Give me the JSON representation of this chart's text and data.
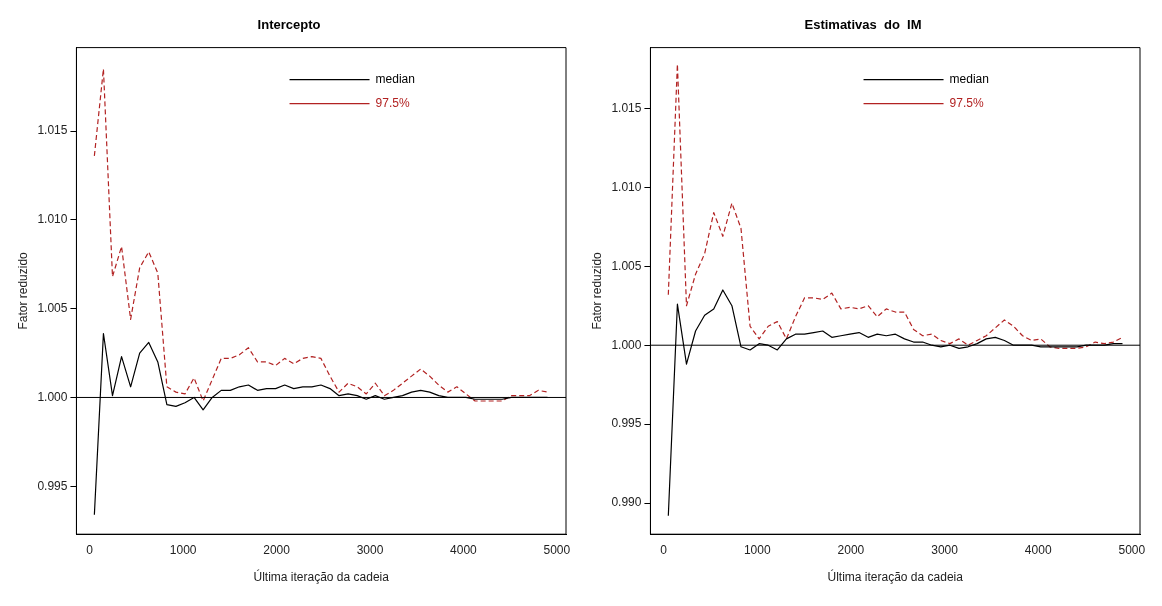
{
  "chart_data": [
    {
      "type": "line",
      "title": "Intercepto",
      "xlabel": "Última iteração da cadeia",
      "ylabel": "Fator reduzido",
      "x": [
        50,
        147,
        244,
        341,
        438,
        535,
        632,
        729,
        826,
        923,
        1020,
        1117,
        1214,
        1311,
        1408,
        1505,
        1602,
        1699,
        1796,
        1893,
        1990,
        2087,
        2184,
        2281,
        2378,
        2475,
        2572,
        2669,
        2766,
        2863,
        2960,
        3057,
        3154,
        3251,
        3348,
        3445,
        3542,
        3639,
        3736,
        3833,
        3930,
        4027,
        4124,
        4221,
        4318,
        4415,
        4512,
        4609,
        4706,
        4803,
        4900
      ],
      "series": [
        {
          "name": "median",
          "color": "#000000",
          "line_style": "solid",
          "values": [
            0.9934,
            1.0036,
            1.0001,
            1.0023,
            1.0006,
            1.0025,
            1.0031,
            1.002,
            0.9996,
            0.9995,
            0.9997,
            1.0,
            0.9993,
            1.0,
            1.0004,
            1.0004,
            1.0006,
            1.0007,
            1.0004,
            1.0005,
            1.0005,
            1.0007,
            1.0005,
            1.0006,
            1.0006,
            1.0007,
            1.0005,
            1.0001,
            1.0002,
            1.0001,
            0.9999,
            1.0001,
            0.9999,
            1.0,
            1.0001,
            1.0003,
            1.0004,
            1.0003,
            1.0001,
            1.0,
            1.0,
            1.0,
            0.9999,
            0.9999,
            0.9999,
            0.9999,
            1.0,
            1.0,
            1.0,
            1.0,
            1.0
          ]
        },
        {
          "name": "97.5%",
          "color": "#b22222",
          "line_style": "dashed",
          "values": [
            1.0136,
            1.0185,
            1.0068,
            1.0085,
            1.0044,
            1.0073,
            1.0082,
            1.007,
            1.0006,
            1.0003,
            1.0002,
            1.0011,
            0.9998,
            1.001,
            1.0022,
            1.0022,
            1.0024,
            1.0028,
            1.002,
            1.002,
            1.0018,
            1.0022,
            1.0019,
            1.0022,
            1.0023,
            1.0022,
            1.0012,
            1.0003,
            1.0008,
            1.0006,
            1.0002,
            1.0008,
            1.0001,
            1.0004,
            1.0008,
            1.0012,
            1.0016,
            1.0012,
            1.0007,
            1.0003,
            1.0006,
            1.0002,
            0.9998,
            0.9998,
            0.9998,
            0.9998,
            1.0001,
            1.0001,
            1.0001,
            1.0004,
            1.0003
          ]
        }
      ],
      "xlim": [
        -142,
        5098
      ],
      "ylim": [
        0.9923,
        1.0197
      ],
      "xticks": [
        0,
        1000,
        2000,
        3000,
        4000,
        5000
      ],
      "yticks": [
        0.995,
        {
          "value": 1,
          "label": "1.000"
        },
        1.005,
        {
          "value": 1.01,
          "label": "1.010"
        },
        1.015
      ],
      "ref_lines": [
        {
          "axis": "y",
          "value": 1,
          "color": "#000000"
        }
      ],
      "legend": "top",
      "grid": false,
      "marker": "none"
    },
    {
      "type": "line",
      "title": "Estimativas  do  IM",
      "xlabel": "Última iteração da cadeia",
      "ylabel": "Fator reduzido",
      "x": [
        50,
        147,
        244,
        341,
        438,
        535,
        632,
        729,
        826,
        923,
        1020,
        1117,
        1214,
        1311,
        1408,
        1505,
        1602,
        1699,
        1796,
        1893,
        1990,
        2087,
        2184,
        2281,
        2378,
        2475,
        2572,
        2669,
        2766,
        2863,
        2960,
        3057,
        3154,
        3251,
        3348,
        3445,
        3542,
        3639,
        3736,
        3833,
        3930,
        4027,
        4124,
        4221,
        4318,
        4415,
        4512,
        4609,
        4706,
        4803,
        4900
      ],
      "series": [
        {
          "name": "median",
          "color": "#000000",
          "line_style": "solid",
          "values": [
            0.9892,
            1.0026,
            0.9988,
            1.0009,
            1.0019,
            1.0023,
            1.0035,
            1.0025,
            0.9999,
            0.9997,
            1.0001,
            1.0,
            0.9997,
            1.0004,
            1.0007,
            1.0007,
            1.0008,
            1.0009,
            1.0005,
            1.0006,
            1.0007,
            1.0008,
            1.0005,
            1.0007,
            1.0006,
            1.0007,
            1.0004,
            1.0002,
            1.0002,
            1.0,
            0.9999,
            1.0,
            0.9998,
            0.9999,
            1.0001,
            1.0004,
            1.0005,
            1.0003,
            1.0,
            1.0,
            1.0,
            0.9999,
            0.9999,
            0.9999,
            0.9999,
            0.9999,
            1.0,
            1.0,
            1.0,
            1.0001,
            1.0001
          ]
        },
        {
          "name": "97.5%",
          "color": "#b22222",
          "line_style": "dashed",
          "values": [
            1.0032,
            1.0178,
            1.0025,
            1.0045,
            1.0058,
            1.0084,
            1.0069,
            1.009,
            1.0074,
            1.0012,
            1.0004,
            1.0012,
            1.0015,
            1.0004,
            1.0018,
            1.003,
            1.003,
            1.0029,
            1.0033,
            1.0023,
            1.0024,
            1.0023,
            1.0025,
            1.0018,
            1.0023,
            1.0021,
            1.0021,
            1.001,
            1.0006,
            1.0007,
            1.0003,
            1.0001,
            1.0004,
            1.0,
            1.0003,
            1.0006,
            1.0011,
            1.0016,
            1.0012,
            1.0006,
            1.0003,
            1.0004,
            0.9999,
            0.9998,
            0.9998,
            0.9998,
            0.9999,
            1.0002,
            1.0001,
            1.0002,
            1.0005
          ]
        }
      ],
      "xlim": [
        -141,
        5087
      ],
      "ylim": [
        0.98803,
        1.01885
      ],
      "xticks": [
        0,
        1000,
        2000,
        3000,
        4000,
        5000
      ],
      "yticks": [
        {
          "value": 0.99,
          "label": "0.990"
        },
        0.995,
        {
          "value": 1,
          "label": "1.000"
        },
        1.005,
        {
          "value": 1.01,
          "label": "1.010"
        },
        1.015
      ],
      "ref_lines": [
        {
          "axis": "y",
          "value": 1,
          "color": "#000000"
        }
      ],
      "legend": "top",
      "grid": false,
      "marker": "none"
    }
  ]
}
